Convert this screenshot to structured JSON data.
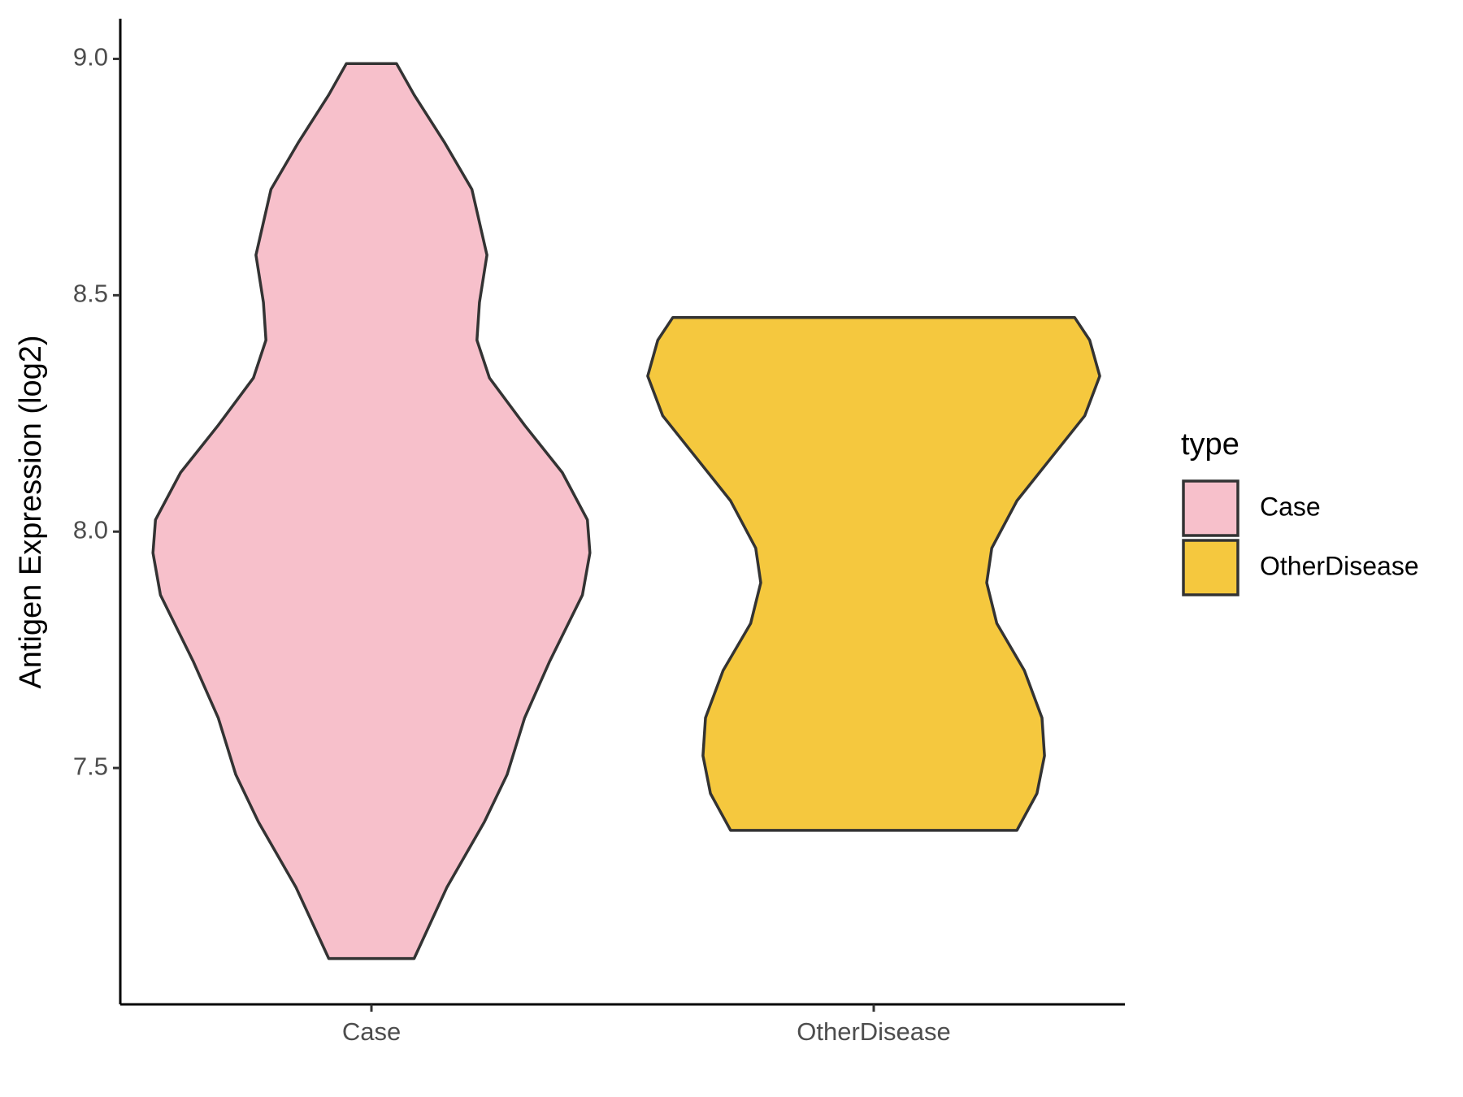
{
  "chart_data": {
    "type": "violin",
    "y_label": "Antigen Expression (log2)",
    "legend_title": "type",
    "legend_position": "right",
    "categories": [
      "Case",
      "OtherDisease"
    ],
    "ylim": [
      7.0,
      9.085
    ],
    "yticks": [
      7.5,
      {
        "value": 8,
        "label": "8.0"
      },
      8.5,
      {
        "value": 9,
        "label": "9.0"
      }
    ],
    "series": [
      {
        "name": "Case",
        "color": "#f7c0cb",
        "y": [
          8.99,
          8.924,
          8.824,
          8.724,
          8.585,
          8.485,
          8.405,
          8.325,
          8.225,
          8.125,
          8.025,
          7.955,
          7.866,
          7.726,
          7.606,
          7.486,
          7.386,
          7.247,
          7.097
        ],
        "width": [
          0.1,
          0.17,
          0.29,
          0.4,
          0.46,
          0.43,
          0.42,
          0.47,
          0.61,
          0.76,
          0.86,
          0.87,
          0.84,
          0.71,
          0.61,
          0.54,
          0.45,
          0.3,
          0.17
        ]
      },
      {
        "name": "OtherDisease",
        "color": "#f5c83e",
        "y": [
          8.453,
          8.405,
          8.329,
          8.245,
          8.165,
          8.065,
          7.965,
          7.892,
          7.806,
          7.706,
          7.606,
          7.526,
          7.446,
          7.368
        ],
        "width": [
          0.8,
          0.86,
          0.9,
          0.84,
          0.72,
          0.57,
          0.47,
          0.45,
          0.49,
          0.6,
          0.67,
          0.68,
          0.65,
          0.57
        ]
      }
    ]
  }
}
